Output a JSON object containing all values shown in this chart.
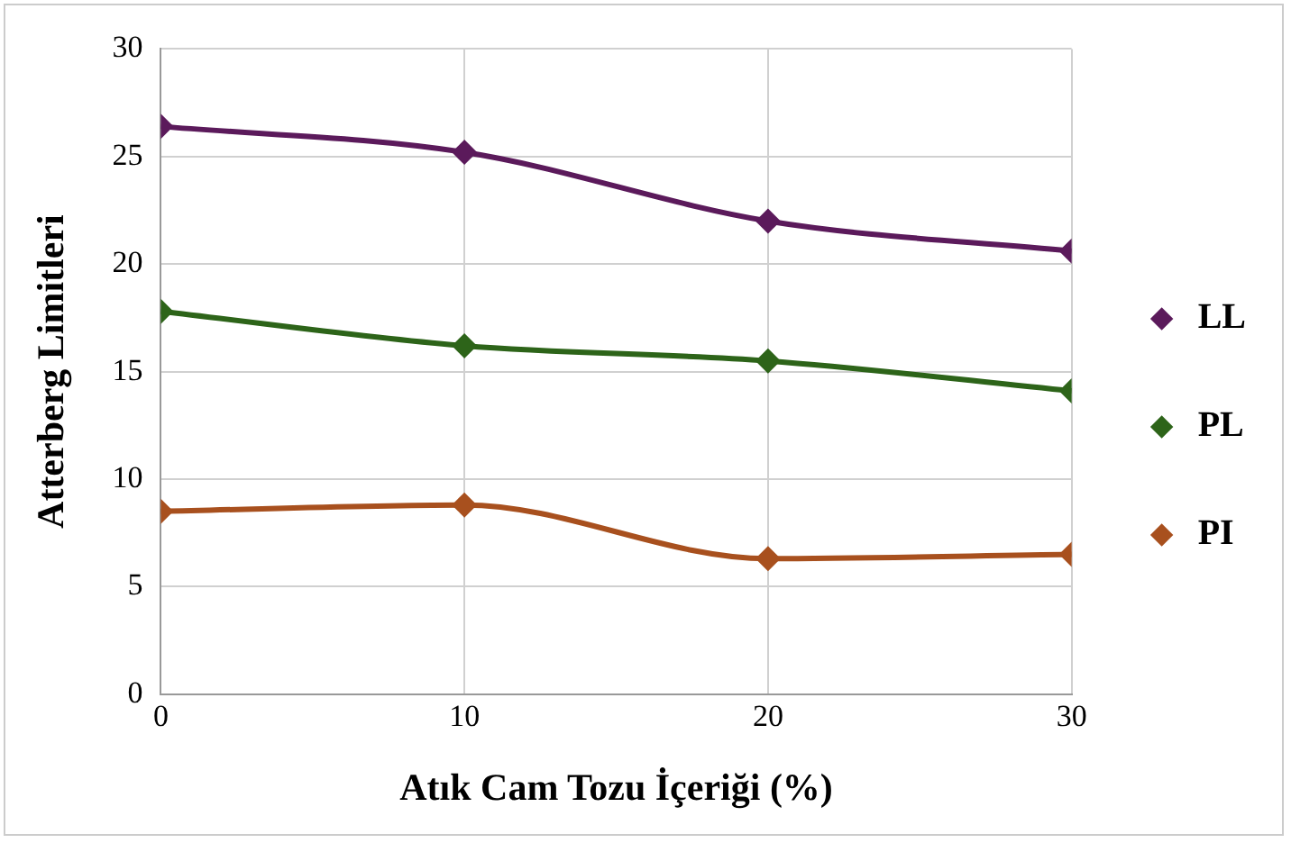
{
  "chart_data": {
    "type": "line",
    "xlabel": "Atık Cam Tozu İçeriği (%)",
    "ylabel": "Atterberg Limitleri",
    "x": [
      0,
      10,
      20,
      30
    ],
    "xlim": [
      0,
      30
    ],
    "xticks": [
      0,
      10,
      20,
      30
    ],
    "ylim": [
      0,
      30
    ],
    "yticks": [
      0,
      5,
      10,
      15,
      20,
      25,
      30
    ],
    "series": [
      {
        "name": "LL",
        "color": "#5b1a5b",
        "values": [
          26.4,
          25.2,
          22.0,
          20.6
        ]
      },
      {
        "name": "PL",
        "color": "#2d6419",
        "values": [
          17.8,
          16.2,
          15.5,
          14.1
        ]
      },
      {
        "name": "PI",
        "color": "#a8501e",
        "values": [
          8.5,
          8.8,
          6.3,
          6.5
        ]
      }
    ],
    "grid": true,
    "legend": "right",
    "marker": "diamond",
    "line_style": "solid"
  }
}
